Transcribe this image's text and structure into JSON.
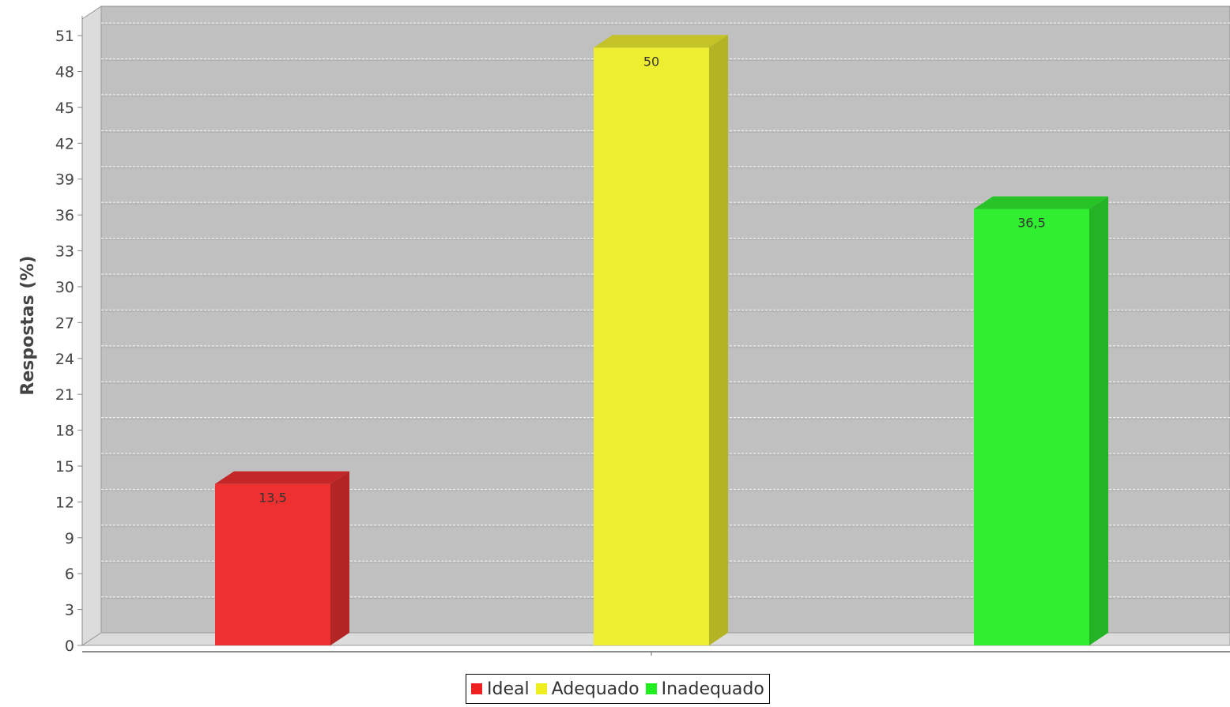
{
  "chart_data": {
    "type": "bar",
    "categories": [
      "Ideal",
      "Adequado",
      "Inadequado"
    ],
    "values": [
      13.5,
      50,
      36.5
    ],
    "value_labels": [
      "13,5",
      "50",
      "36,5"
    ],
    "colors": [
      "#ee3030",
      "#eeee30",
      "#30ee30"
    ],
    "ylabel": "Respostas (%)",
    "xlabel": "",
    "ylim": [
      0,
      52
    ],
    "yticks": [
      0,
      3,
      6,
      9,
      12,
      15,
      18,
      21,
      24,
      27,
      30,
      33,
      36,
      39,
      42,
      45,
      48,
      51
    ],
    "grid": true,
    "style": "3d",
    "legend": {
      "placement": "bottom",
      "items": [
        {
          "label": "Ideal",
          "color": "#ee2020"
        },
        {
          "label": "Adequado",
          "color": "#eeee20"
        },
        {
          "label": "Inadequado",
          "color": "#20ee20"
        }
      ]
    }
  }
}
